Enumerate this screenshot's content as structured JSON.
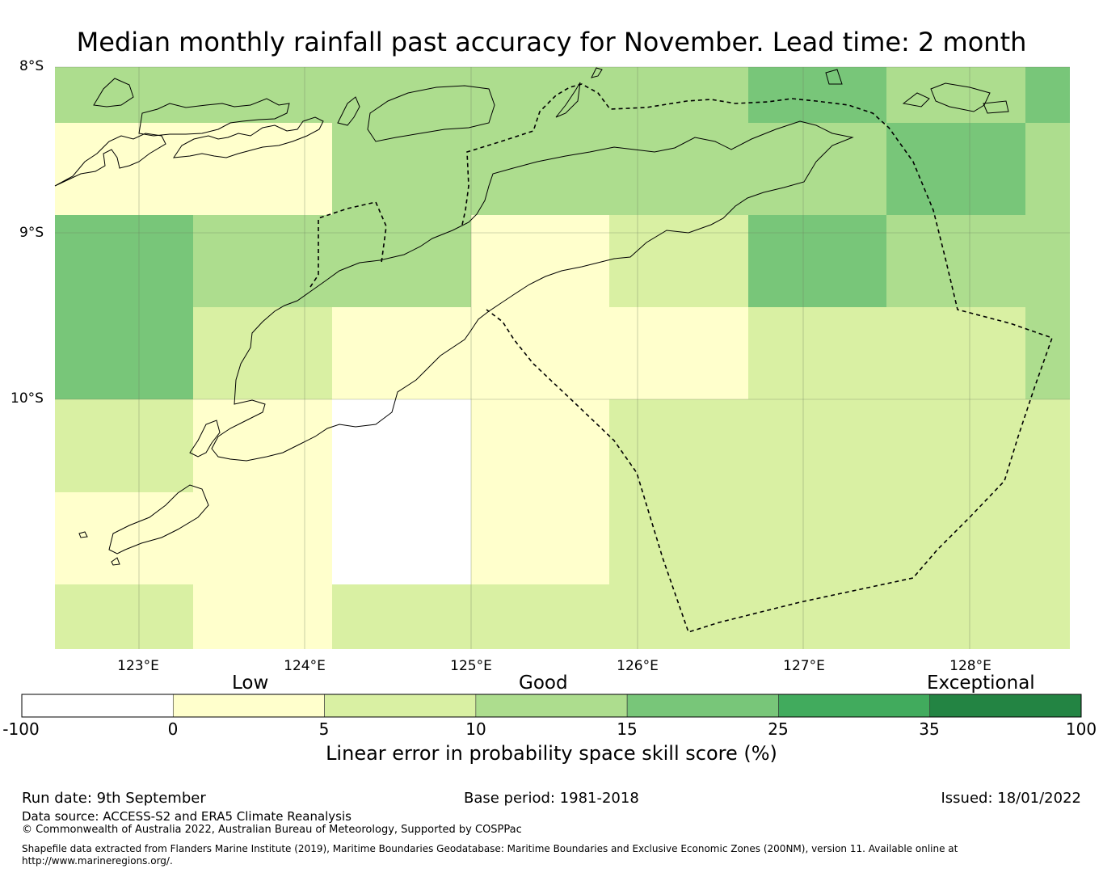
{
  "title": "Median monthly rainfall past accuracy for November. Lead time: 2 month",
  "map": {
    "lat_labels": [
      "8°S",
      "9°S",
      "10°S"
    ],
    "lon_labels": [
      "123°E",
      "124°E",
      "125°E",
      "126°E",
      "127°E",
      "128°E"
    ],
    "lon_range": [
      122.5,
      128.6
    ],
    "lat_range": [
      -8.0,
      -11.5
    ],
    "cell_size_deg": 0.833,
    "skill_grid": [
      [
        10,
        10,
        10,
        10,
        10,
        20,
        10,
        20
      ],
      [
        3,
        3,
        10,
        10,
        10,
        10,
        20,
        10
      ],
      [
        20,
        10,
        10,
        3,
        7,
        20,
        10,
        10
      ],
      [
        20,
        7,
        3,
        3,
        3,
        7,
        7,
        10
      ],
      [
        7,
        3,
        -5,
        3,
        7,
        7,
        7,
        7
      ],
      [
        3,
        3,
        -5,
        3,
        7,
        7,
        7,
        7
      ],
      [
        7,
        3,
        7,
        7,
        7,
        7,
        7,
        7
      ]
    ]
  },
  "colorbar": {
    "categories": [
      "Low",
      "Good",
      "Exceptional"
    ],
    "ticks": [
      "-100",
      "0",
      "5",
      "10",
      "15",
      "25",
      "35",
      "100"
    ],
    "colors": [
      "#ffffff",
      "#ffffcc",
      "#d9f0a3",
      "#addd8e",
      "#78c679",
      "#41ab5d",
      "#238443"
    ],
    "title": "Linear error in probability space skill score (%)"
  },
  "footer": {
    "run_date": "Run date: 9th September",
    "base_period": "Base period: 1981-2018",
    "issued": "Issued: 18/01/2022",
    "data_source": "Data source: ACCESS-S2 and ERA5 Climate Reanalysis",
    "copyright": "© Commonwealth of Australia 2022, Australian Bureau of Meteorology, Supported by COSPPac",
    "shapefile_line1": "Shapefile data extracted from Flanders Marine Institute (2019), Maritime Boundaries Geodatabase: Maritime Boundaries and Exclusive Economic Zones (200NM), version 11. Available online at",
    "shapefile_line2": "http://www.marineregions.org/."
  }
}
